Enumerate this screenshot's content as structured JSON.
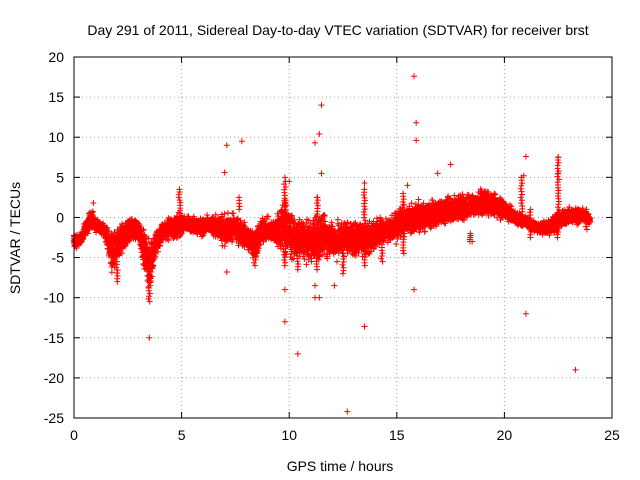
{
  "chart_data": {
    "type": "scatter",
    "title": "Day 291 of 2011, Sidereal Day-to-day VTEC variation (SDTVAR) for receiver brst",
    "xlabel": "GPS time / hours",
    "ylabel": "SDTVAR / TECUs",
    "xlim": [
      0,
      25
    ],
    "ylim": [
      -25,
      20
    ],
    "xticks": [
      "0",
      "5",
      "10",
      "15",
      "20",
      "25"
    ],
    "yticks": [
      "20",
      "15",
      "10",
      "5",
      "0",
      "-5",
      "-10",
      "-15",
      "-20",
      "-25"
    ],
    "grid": true,
    "marker": "+",
    "series_color": "#ff0000",
    "band": [
      [
        0.0,
        -4.5,
        -1.5
      ],
      [
        0.3,
        -3.5,
        -2.0
      ],
      [
        0.8,
        -1.5,
        1.5
      ],
      [
        1.0,
        -2.0,
        0.0
      ],
      [
        1.4,
        -2.5,
        -0.5
      ],
      [
        1.8,
        -8.0,
        -1.0
      ],
      [
        2.2,
        -5.5,
        -0.5
      ],
      [
        2.6,
        -3.5,
        0.5
      ],
      [
        3.0,
        -3.0,
        0.0
      ],
      [
        3.5,
        -10.5,
        -2.0
      ],
      [
        3.8,
        -5.5,
        -1.0
      ],
      [
        4.2,
        -3.0,
        0.0
      ],
      [
        4.8,
        -3.0,
        0.8
      ],
      [
        5.2,
        -2.0,
        0.5
      ],
      [
        5.8,
        -2.5,
        0.2
      ],
      [
        6.4,
        -2.5,
        0.5
      ],
      [
        7.0,
        -4.0,
        1.0
      ],
      [
        7.5,
        -3.5,
        1.0
      ],
      [
        8.0,
        -4.5,
        -0.5
      ],
      [
        8.4,
        -6.0,
        -0.5
      ],
      [
        8.8,
        -3.5,
        0.5
      ],
      [
        9.3,
        -3.5,
        0.0
      ],
      [
        9.8,
        -6.5,
        4.0
      ],
      [
        10.2,
        -5.5,
        0.5
      ],
      [
        10.6,
        -6.0,
        0.5
      ],
      [
        11.0,
        -6.0,
        0.0
      ],
      [
        11.4,
        -6.5,
        2.0
      ],
      [
        11.8,
        -5.5,
        0.5
      ],
      [
        12.2,
        -6.0,
        0.0
      ],
      [
        12.6,
        -5.0,
        0.5
      ],
      [
        13.0,
        -5.5,
        0.0
      ],
      [
        13.4,
        -5.5,
        0.5
      ],
      [
        13.8,
        -5.0,
        0.0
      ],
      [
        14.2,
        -3.5,
        0.5
      ],
      [
        14.6,
        -3.5,
        0.0
      ],
      [
        15.0,
        -3.5,
        1.5
      ],
      [
        15.5,
        -2.5,
        2.0
      ],
      [
        16.0,
        -2.5,
        2.5
      ],
      [
        16.5,
        -2.0,
        2.5
      ],
      [
        17.0,
        -1.5,
        3.0
      ],
      [
        17.5,
        -1.0,
        3.0
      ],
      [
        18.0,
        -1.0,
        3.5
      ],
      [
        18.5,
        -0.5,
        3.5
      ],
      [
        19.0,
        0.0,
        3.8
      ],
      [
        19.5,
        -0.5,
        3.5
      ],
      [
        20.0,
        -0.5,
        2.5
      ],
      [
        20.5,
        -1.0,
        1.0
      ],
      [
        21.0,
        -1.5,
        0.5
      ],
      [
        21.5,
        -2.0,
        -0.5
      ],
      [
        22.0,
        -2.5,
        0.0
      ],
      [
        22.5,
        -2.0,
        1.0
      ],
      [
        23.0,
        -1.0,
        1.5
      ],
      [
        23.5,
        -1.0,
        1.5
      ],
      [
        24.0,
        -1.0,
        0.5
      ]
    ],
    "outliers": [
      [
        0.9,
        1.8
      ],
      [
        3.5,
        -15
      ],
      [
        7.0,
        5.6
      ],
      [
        7.1,
        9.0
      ],
      [
        7.1,
        -6.8
      ],
      [
        7.8,
        9.5
      ],
      [
        9.8,
        5.0
      ],
      [
        9.8,
        -9.0
      ],
      [
        9.8,
        -13.0
      ],
      [
        10.0,
        4.5
      ],
      [
        10.4,
        -17.0
      ],
      [
        11.2,
        9.3
      ],
      [
        11.3,
        2.5
      ],
      [
        11.4,
        10.4
      ],
      [
        11.5,
        14.0
      ],
      [
        11.5,
        5.5
      ],
      [
        11.2,
        -8.5
      ],
      [
        11.2,
        -10.0
      ],
      [
        11.4,
        -10.0
      ],
      [
        12.1,
        -8.5
      ],
      [
        12.7,
        -24.2
      ],
      [
        13.5,
        4.3
      ],
      [
        13.5,
        -13.6
      ],
      [
        15.5,
        4.0
      ],
      [
        15.8,
        17.6
      ],
      [
        15.9,
        11.8
      ],
      [
        15.9,
        9.6
      ],
      [
        15.8,
        -9.0
      ],
      [
        16.9,
        5.5
      ],
      [
        17.5,
        6.6
      ],
      [
        18.5,
        -3.0
      ],
      [
        20.9,
        5.2
      ],
      [
        21.0,
        7.6
      ],
      [
        21.0,
        -12.0
      ],
      [
        22.5,
        7.5
      ],
      [
        22.5,
        5.5
      ],
      [
        23.3,
        -19.0
      ]
    ],
    "vertical_spikes": [
      [
        2.0,
        -8.0,
        -5.5
      ],
      [
        3.5,
        -10.5,
        -4.0
      ],
      [
        4.9,
        0.5,
        3.5
      ],
      [
        7.7,
        1.0,
        2.5
      ],
      [
        8.4,
        -6.0,
        -3.5
      ],
      [
        9.8,
        -6.0,
        4.5
      ],
      [
        10.4,
        -6.5,
        -2.0
      ],
      [
        11.3,
        -6.5,
        2.5
      ],
      [
        12.5,
        -7.0,
        -3.0
      ],
      [
        13.5,
        -6.0,
        3.5
      ],
      [
        14.3,
        -5.5,
        -2.0
      ],
      [
        15.3,
        -4.5,
        3.0
      ],
      [
        18.4,
        -3.0,
        -2.0
      ],
      [
        20.8,
        0.0,
        5.0
      ],
      [
        21.2,
        -2.5,
        1.0
      ],
      [
        22.5,
        -2.5,
        7.5
      ],
      [
        23.8,
        -1.5,
        1.0
      ]
    ]
  }
}
